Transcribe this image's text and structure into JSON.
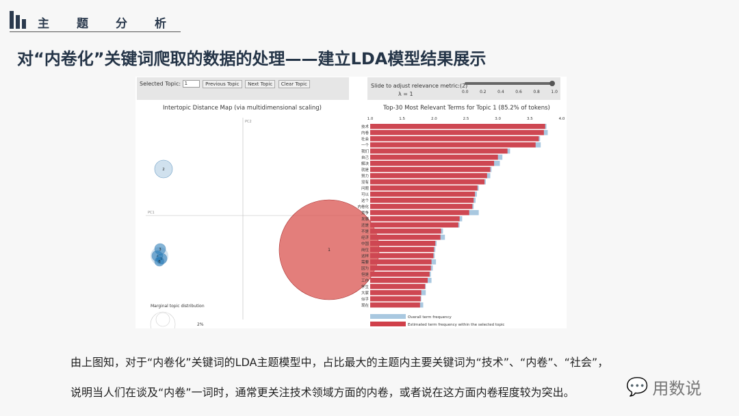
{
  "header": {
    "section_title": "主题分析"
  },
  "slide_title": "对“内卷化”关键词爬取的数据的处理——建立LDA模型结果展示",
  "controls": {
    "selected_topic_label": "Selected Topic:",
    "selected_topic_value": "1",
    "prev": "Previous Topic",
    "next": "Next Topic",
    "clear": "Clear Topic",
    "slider_label": "Slide to adjust relevance metric:(2)",
    "lambda": "λ = 1",
    "slider_ticks": [
      "0.0",
      "0.2",
      "0.4",
      "0.6",
      "0.8",
      "1.0"
    ],
    "slider_value": 1.0
  },
  "chart_data": [
    {
      "type": "scatter",
      "title": "Intertopic Distance Map (via multidimensional scaling)",
      "xlabel": "PC1",
      "ylabel": "PC2",
      "topics": [
        {
          "label": "1",
          "size_share": 85.2,
          "color": "#d9534f"
        },
        {
          "label": "2",
          "color": "#a9c8e0"
        },
        {
          "label": "3",
          "color": "#1f77b4"
        },
        {
          "label": "4",
          "color": "#1f77b4"
        },
        {
          "label": "5",
          "color": "#1f77b4"
        },
        {
          "label": "6",
          "color": "#1f77b4"
        }
      ],
      "legend_title": "Marginal topic distribution",
      "legend_value": "2%"
    },
    {
      "type": "bar",
      "orientation": "horizontal",
      "title": "Top-30 Most Relevant Terms for Topic 1 (85.2% of tokens)",
      "xlim": [
        1.0,
        4.0
      ],
      "xticks": [
        "1.0",
        "1.5",
        "2.0",
        "2.5",
        "3.0",
        "3.5",
        "4.0"
      ],
      "categories": [
        "技术",
        "内卷",
        "社会",
        "一个",
        "我们",
        "自己",
        "解决",
        "就是",
        "努力",
        "没有",
        "问题",
        "可以",
        "这个",
        "内卷化",
        "竞争",
        "发展",
        "还是",
        "不是",
        "经济",
        "中国",
        "岗位",
        "这样",
        "需要",
        "因为",
        "但是",
        "工作",
        "学生",
        "大家",
        "似乎",
        "现在"
      ],
      "series": [
        {
          "name": "Overall term frequency",
          "color": "#a9c8e0",
          "values": [
            3.76,
            3.78,
            3.66,
            3.67,
            3.19,
            3.07,
            3.03,
            2.9,
            2.88,
            2.81,
            2.7,
            2.67,
            2.65,
            2.62,
            2.7,
            2.44,
            2.4,
            2.14,
            2.17,
            2.04,
            2.02,
            2.01,
            2.03,
            1.98,
            1.95,
            1.96,
            1.87,
            1.87,
            1.8,
            1.83
          ]
        },
        {
          "name": "Estimated term frequency within the selected topic",
          "color": "#d0404a",
          "values": [
            3.74,
            3.72,
            3.64,
            3.59,
            3.15,
            3.0,
            2.94,
            2.88,
            2.83,
            2.79,
            2.68,
            2.64,
            2.62,
            2.6,
            2.55,
            2.4,
            2.38,
            2.11,
            2.1,
            2.02,
            2.0,
            1.99,
            1.96,
            1.95,
            1.93,
            1.9,
            1.86,
            1.8,
            1.79,
            1.78
          ]
        }
      ]
    }
  ],
  "body": {
    "line1": "由上图知，对于“内卷化”关键词的LDA主题模型中，占比最大的主题内主要关键词为“技术”、“内卷”、“社会”，",
    "line2": "说明当人们在谈及“内卷”一词时，通常更关注技术领域方面的内卷，或者说在这方面内卷程度较为突出。"
  },
  "watermark": "用数说"
}
